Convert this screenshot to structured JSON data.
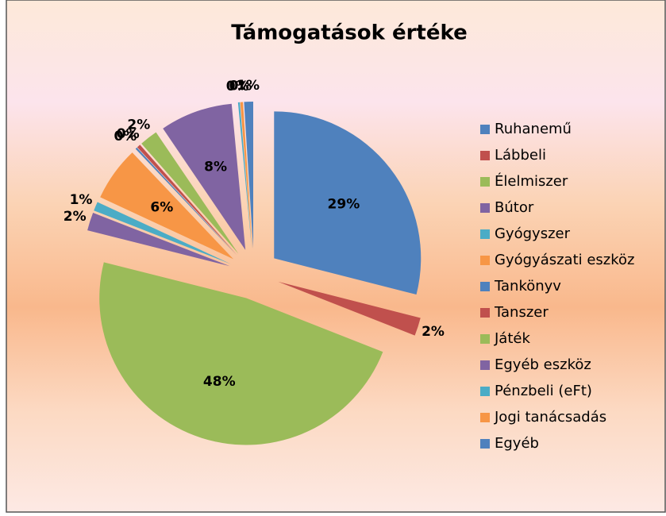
{
  "chart_data": {
    "type": "pie",
    "title": "Támogatások értéke",
    "categories": [
      "Ruhanemű",
      "Lábbeli",
      "Élelmiszer",
      "Bútor",
      "Gyógyszer",
      "Gyógyászati eszköz",
      "Tankönyv",
      "Tanszer",
      "Játék",
      "Egyéb eszköz",
      "Pénzbeli (eFt)",
      "Jogi tanácsadás",
      "Egyéb"
    ],
    "values": [
      29,
      2,
      48,
      2,
      1,
      6,
      0.2,
      0.4,
      2,
      8,
      0.2,
      0.3,
      1
    ],
    "value_labels": [
      "29%",
      "2%",
      "48%",
      "2%",
      "1%",
      "6%",
      "0%",
      "0%",
      "2%",
      "8%",
      "0%",
      "0%",
      "1%"
    ],
    "colors": [
      "#4f81bd",
      "#c0504d",
      "#9bbb59",
      "#8064a2",
      "#4bacc6",
      "#f79646",
      "#4f81bd",
      "#c0504d",
      "#9bbb59",
      "#8064a2",
      "#4bacc6",
      "#f79646",
      "#4f81bd"
    ],
    "legend": "right"
  }
}
